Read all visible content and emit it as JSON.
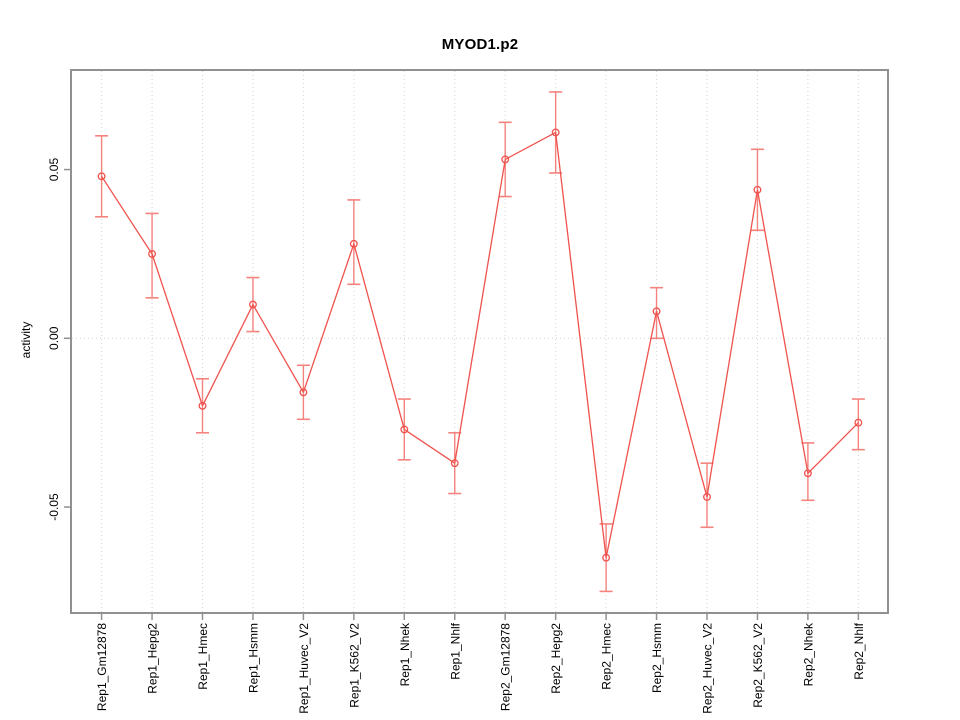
{
  "chart_data": {
    "type": "line",
    "title": "MYOD1.p2",
    "xlabel": "",
    "ylabel": "activity",
    "categories": [
      "Rep1_Gm12878",
      "Rep1_Hepg2",
      "Rep1_Hmec",
      "Rep1_Hsmm",
      "Rep1_Huvec_V2",
      "Rep1_K562_V2",
      "Rep1_Nhek",
      "Rep1_Nhlf",
      "Rep2_Gm12878",
      "Rep2_Hepg2",
      "Rep2_Hmec",
      "Rep2_Hsmm",
      "Rep2_Huvec_V2",
      "Rep2_K562_V2",
      "Rep2_Nhek",
      "Rep2_Nhlf"
    ],
    "series": [
      {
        "name": "activity",
        "values": [
          0.048,
          0.025,
          -0.02,
          0.01,
          -0.016,
          0.028,
          -0.027,
          -0.037,
          0.053,
          0.061,
          -0.065,
          0.008,
          -0.047,
          0.044,
          -0.04,
          -0.025
        ],
        "error_upper": [
          0.06,
          0.037,
          -0.012,
          0.018,
          -0.008,
          0.041,
          -0.018,
          -0.028,
          0.064,
          0.073,
          -0.055,
          0.015,
          -0.037,
          0.056,
          -0.031,
          -0.018
        ],
        "error_lower": [
          0.036,
          0.012,
          -0.028,
          0.002,
          -0.024,
          0.016,
          -0.036,
          -0.046,
          0.042,
          0.049,
          -0.075,
          0.0,
          -0.056,
          0.032,
          -0.048,
          -0.033
        ]
      }
    ],
    "ylim": [
      -0.0814,
      0.0795
    ],
    "yticks": [
      0.05,
      0.0,
      -0.05
    ],
    "ytick_labels": [
      "0.05",
      "0.00",
      "-0.05"
    ],
    "grid": {
      "horizontal_at_zero": true,
      "vertical_at_each_category": true,
      "style": "dotted"
    },
    "legend": "none",
    "marker": "open-circle",
    "error_bars": true
  },
  "colors": {
    "series_red": "#f0524d",
    "error_bar_red": "#f4837e",
    "axis_gray": "#909090",
    "grid_gray": "#d2d2d2",
    "text_black": "#000000",
    "background": "#ffffff"
  }
}
